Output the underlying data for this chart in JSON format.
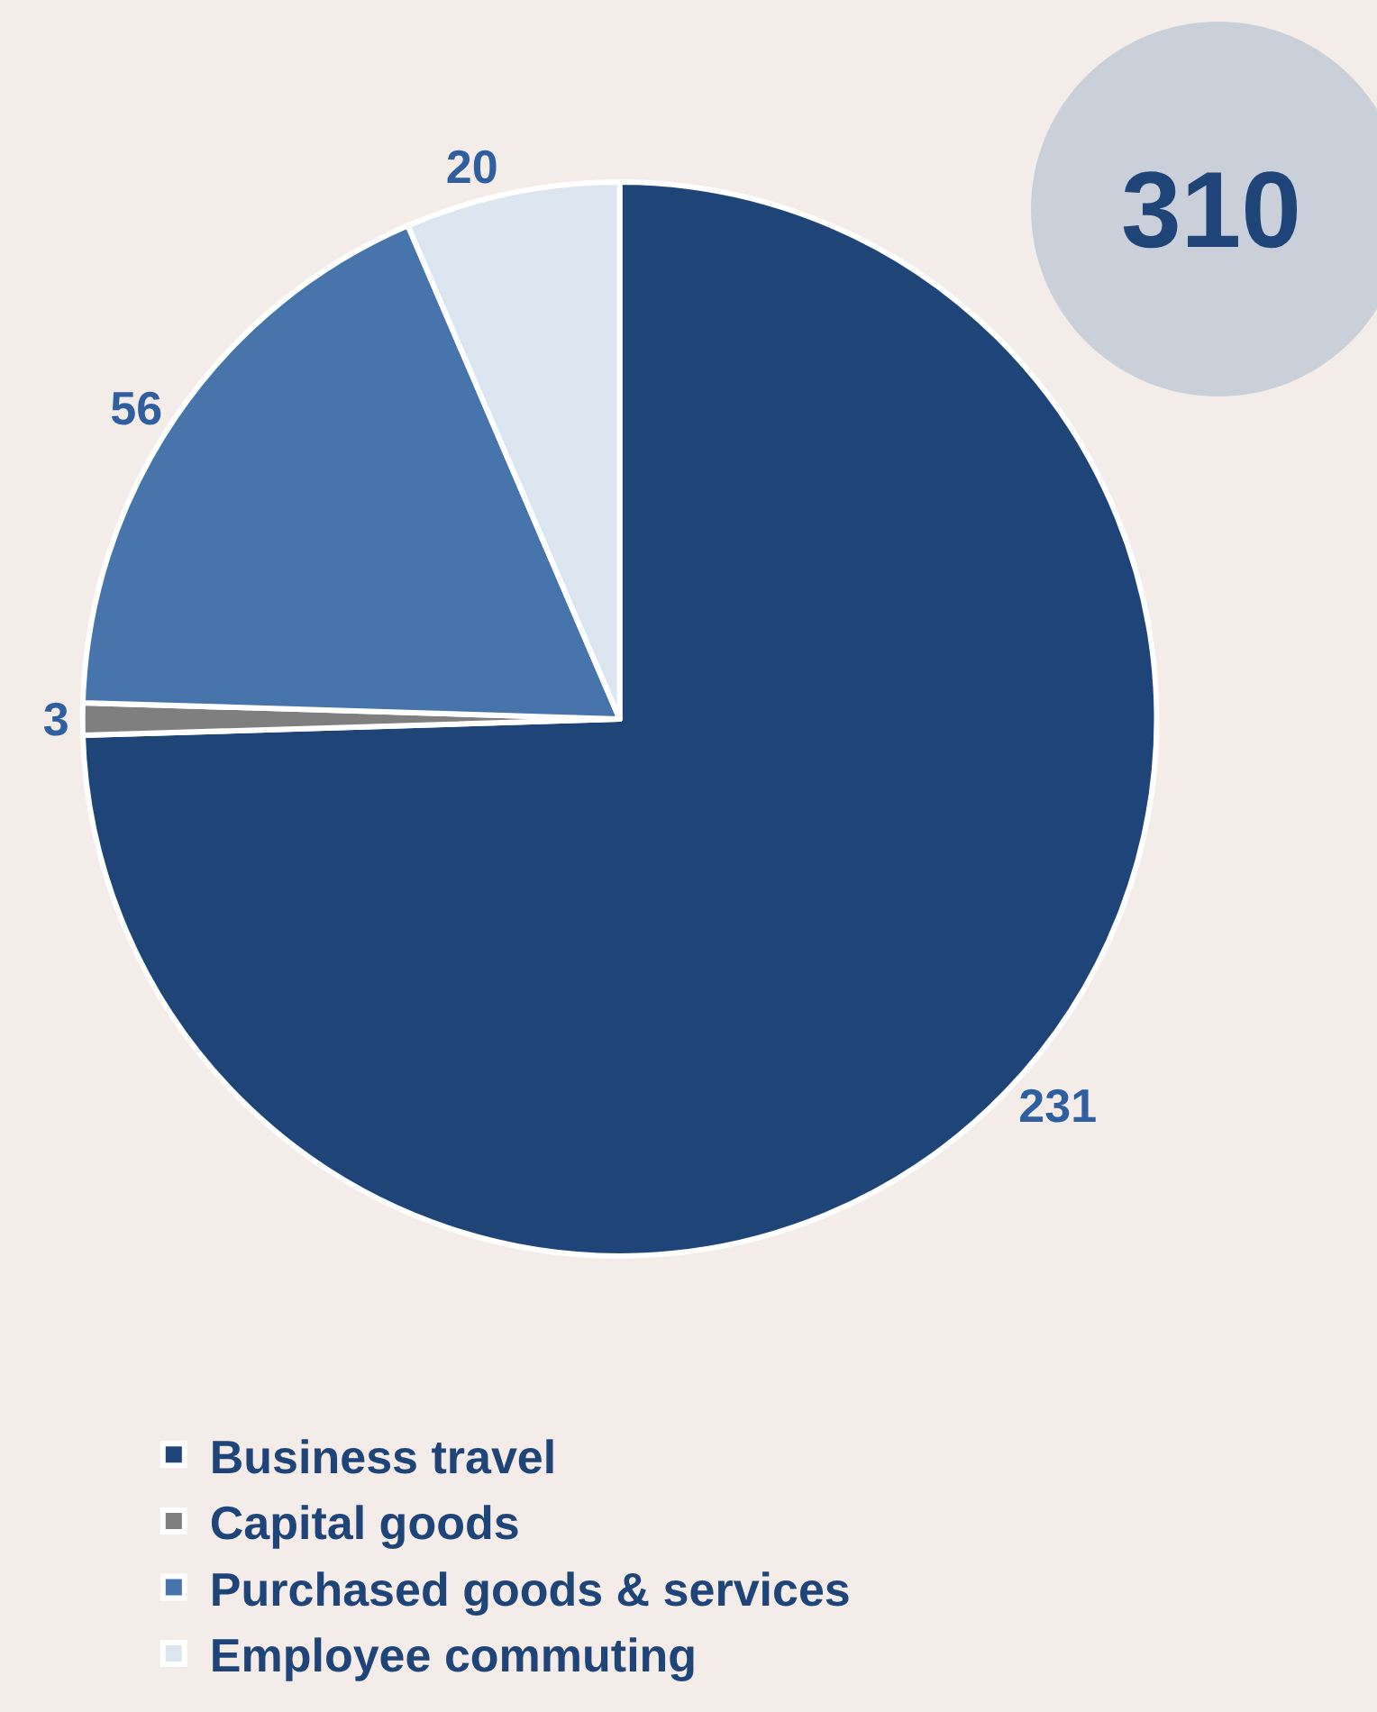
{
  "chart_data": {
    "type": "pie",
    "categories": [
      "Business travel",
      "Capital goods",
      "Purchased goods & services",
      "Employee commuting"
    ],
    "values": [
      231,
      3,
      56,
      20
    ],
    "colors": [
      "#1e4478",
      "#7f7f7f",
      "#4674ab",
      "#dce6f1"
    ],
    "data_labels": true,
    "legend": "bottom left",
    "annotations": [
      "310"
    ]
  }
}
